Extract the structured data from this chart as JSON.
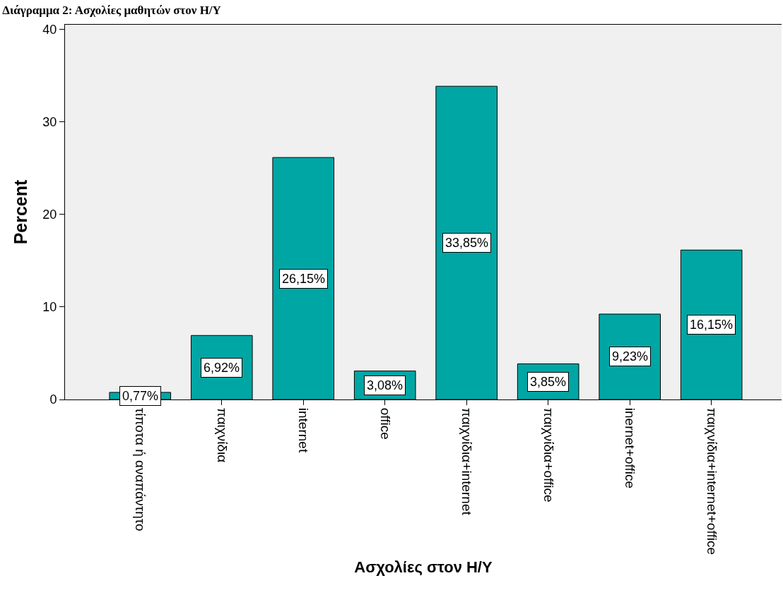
{
  "chart_data": {
    "type": "bar",
    "title": "Διάγραμμα 2: Ασχολίες μαθητών στον Η/Υ",
    "xlabel": "Ασχολίες στον Η/Υ",
    "ylabel": "Percent",
    "categories": [
      "τίποτα ή αναπάντητο",
      "παιχνίδια",
      "internet",
      "office",
      "παιχνίδια+internet",
      "παιχνίδια+office",
      "inernet+office",
      "παιχνίδια+internet+office"
    ],
    "values": [
      0.77,
      6.92,
      26.15,
      3.08,
      33.85,
      3.85,
      9.23,
      16.15
    ],
    "value_labels": [
      "0,77%",
      "6,92%",
      "26,15%",
      "3,08%",
      "33,85%",
      "3,85%",
      "9,23%",
      "16,15%"
    ],
    "color": "#00a6a4",
    "ylim": [
      0,
      40.5
    ],
    "yticks": [
      0,
      10,
      20,
      30,
      40
    ]
  }
}
